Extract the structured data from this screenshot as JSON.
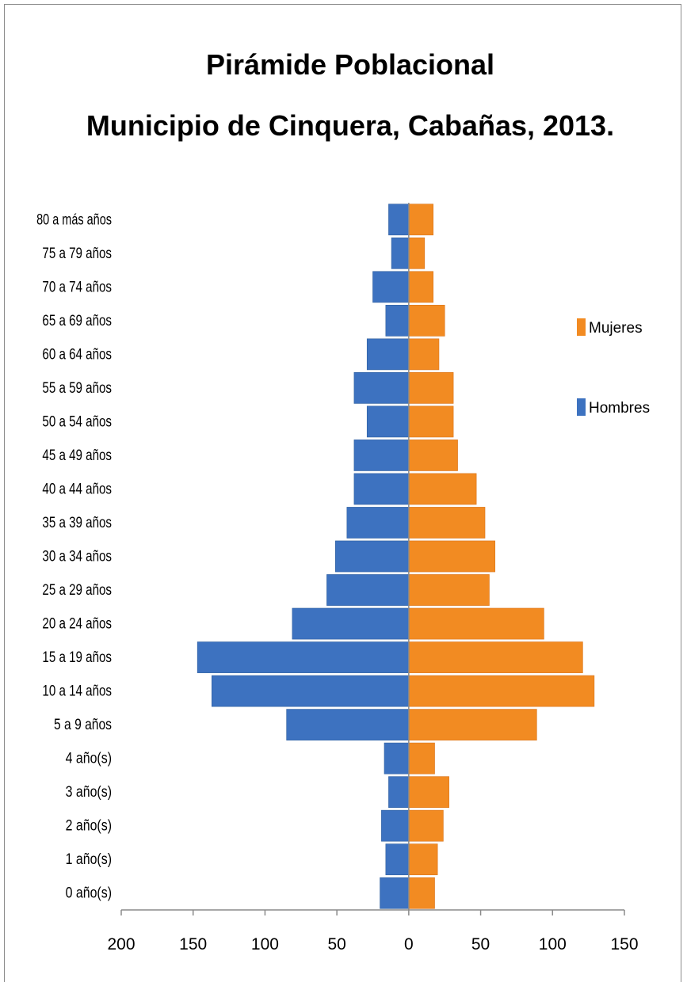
{
  "chart_data": {
    "type": "bar",
    "orientation": "horizontal",
    "title": "Pirámide Poblacional",
    "subtitle": "Municipio de Cinquera, Cabañas, 2013.",
    "categories": [
      "0 año(s)",
      "1 año(s)",
      "2 año(s)",
      "3 año(s)",
      "4 año(s)",
      "5 a 9 años",
      "10 a 14 años",
      "15 a 19 años",
      "20 a 24 años",
      "25 a 29 años",
      "30 a 34 años",
      "35 a 39 años",
      "40 a 44 años",
      "45 a 49 años",
      "50 a 54 años",
      "55 a 59 años",
      "60 a 64 años",
      "65 a 69 años",
      "70 a 74 años",
      "75 a 79 años",
      "80 a más años"
    ],
    "series": [
      {
        "name": "Hombres",
        "color": "#3d72c0",
        "values": [
          -20,
          -16,
          -19,
          -14,
          -17,
          -85,
          -137,
          -147,
          -81,
          -57,
          -51,
          -43,
          -38,
          -38,
          -29,
          -38,
          -29,
          -16,
          -25,
          -12,
          -14
        ]
      },
      {
        "name": "Mujeres",
        "color": "#f28b22",
        "values": [
          18,
          20,
          24,
          28,
          18,
          89,
          129,
          121,
          94,
          56,
          60,
          53,
          47,
          34,
          31,
          31,
          21,
          25,
          17,
          11,
          17
        ]
      }
    ],
    "xlim": [
      -200,
      150
    ],
    "x_tick_labels": [
      "200",
      "150",
      "100",
      "50",
      "0",
      "50",
      "100",
      "150"
    ],
    "legend_position": "right",
    "legend": [
      "Mujeres",
      "Hombres"
    ],
    "grid": false
  }
}
